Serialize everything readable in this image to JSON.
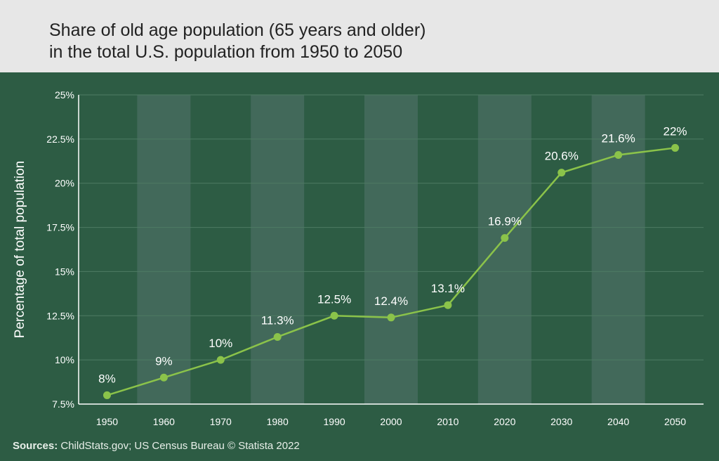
{
  "header": {
    "title_line1": "Share of old age population (65 years and older)",
    "title_line2": "in the total U.S. population from 1950 to 2050"
  },
  "footer": {
    "sources_label": "Sources:",
    "sources_text": "ChildStats.gov; US Census Bureau © Statista 2022"
  },
  "colors": {
    "background": "#2d5c44",
    "band": "#42695a",
    "line": "#8bc34a",
    "grid": "#4e7b63",
    "text": "#ffffff"
  },
  "chart_data": {
    "type": "line",
    "title": "Share of old age population (65 years and older) in the total U.S. population from 1950 to 2050",
    "ylabel": "Percentage of total population",
    "xlabel": "",
    "categories": [
      "1950",
      "1960",
      "1970",
      "1980",
      "1990",
      "2000",
      "2010",
      "2020",
      "2030",
      "2040",
      "2050"
    ],
    "values": [
      8,
      9,
      10,
      11.3,
      12.5,
      12.4,
      13.1,
      16.9,
      20.6,
      21.6,
      22
    ],
    "data_labels": [
      "8%",
      "9%",
      "10%",
      "11.3%",
      "12.5%",
      "12.4%",
      "13.1%",
      "16.9%",
      "20.6%",
      "21.6%",
      "22%"
    ],
    "yticks": [
      7.5,
      10,
      12.5,
      15,
      17.5,
      20,
      22.5,
      25
    ],
    "ytick_labels": [
      "7.5%",
      "10%",
      "12.5%",
      "15%",
      "17.5%",
      "20%",
      "22.5%",
      "25%"
    ],
    "ylim": [
      7.5,
      25
    ],
    "grid": true,
    "alternating_bands": true,
    "legend": "none"
  }
}
